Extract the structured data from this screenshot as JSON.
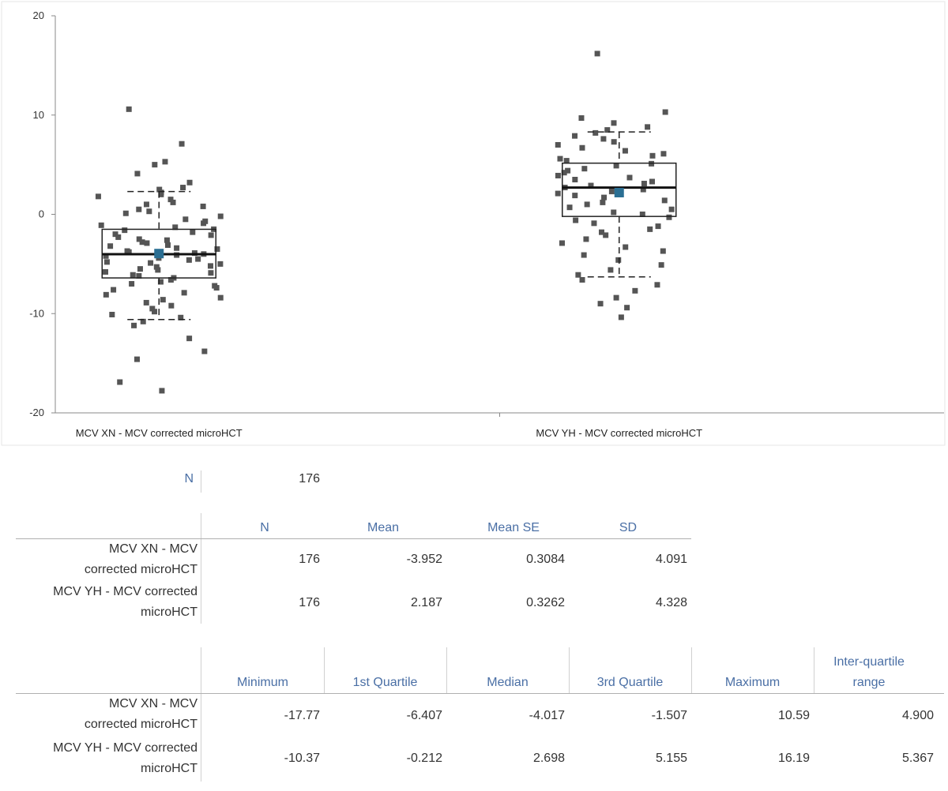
{
  "chart_data": {
    "type": "box-scatter",
    "ylim": [
      -20,
      20
    ],
    "yticks": [
      -20,
      -10,
      0,
      10,
      20
    ],
    "categories": [
      "MCV XN - MCV corrected microHCT",
      "MCV YH - MCV corrected microHCT"
    ],
    "series": [
      {
        "name": "MCV XN - MCV corrected microHCT",
        "box": {
          "min": -17.77,
          "q1": -6.407,
          "median": -4.017,
          "q3": -1.507,
          "max": 10.59,
          "mean": -3.952,
          "whisker_low": -10.6,
          "whisker_high": 2.3
        },
        "points": [
          10.59,
          7.1,
          5.3,
          5.0,
          4.1,
          3.2,
          2.7,
          2.5,
          2.2,
          2.0,
          1.8,
          1.5,
          1.2,
          1.0,
          0.8,
          0.5,
          0.3,
          0.1,
          -0.2,
          -0.5,
          -0.7,
          -0.9,
          -1.1,
          -1.3,
          -1.5,
          -1.6,
          -1.8,
          -2.0,
          -2.1,
          -2.3,
          -2.5,
          -2.6,
          -2.8,
          -2.9,
          -3.1,
          -3.2,
          -3.4,
          -3.5,
          -3.7,
          -3.8,
          -3.9,
          -4.0,
          -4.1,
          -4.2,
          -4.4,
          -4.5,
          -4.6,
          -4.8,
          -4.9,
          -5.0,
          -5.2,
          -5.3,
          -5.5,
          -5.6,
          -5.8,
          -5.9,
          -6.1,
          -6.2,
          -6.4,
          -6.6,
          -6.8,
          -7.0,
          -7.2,
          -7.4,
          -7.6,
          -7.9,
          -8.1,
          -8.4,
          -8.6,
          -8.9,
          -9.2,
          -9.5,
          -9.8,
          -10.1,
          -10.4,
          -10.8,
          -11.2,
          -12.5,
          -13.8,
          -14.6,
          -16.9,
          -17.77
        ]
      },
      {
        "name": "MCV YH - MCV corrected microHCT",
        "box": {
          "min": -10.37,
          "q1": -0.212,
          "median": 2.698,
          "q3": 5.155,
          "max": 16.19,
          "mean": 2.187,
          "whisker_low": -6.3,
          "whisker_high": 8.3
        },
        "points": [
          16.19,
          10.3,
          9.7,
          9.2,
          8.8,
          8.5,
          8.2,
          7.9,
          7.6,
          7.3,
          7.0,
          6.7,
          6.4,
          6.1,
          5.9,
          5.6,
          5.4,
          5.1,
          4.9,
          4.6,
          4.4,
          4.2,
          3.9,
          3.7,
          3.5,
          3.3,
          3.1,
          2.9,
          2.7,
          2.5,
          2.3,
          2.1,
          1.9,
          1.7,
          1.4,
          1.2,
          1.0,
          0.7,
          0.5,
          0.2,
          0.0,
          -0.3,
          -0.6,
          -0.9,
          -1.2,
          -1.5,
          -1.8,
          -2.1,
          -2.5,
          -2.9,
          -3.3,
          -3.7,
          -4.1,
          -4.6,
          -5.1,
          -5.6,
          -6.1,
          -6.6,
          -7.1,
          -7.7,
          -8.4,
          -9.0,
          -9.4,
          -10.37
        ]
      }
    ]
  },
  "summary": {
    "n_label": "N",
    "n_value": "176"
  },
  "table1": {
    "headers": [
      "N",
      "Mean",
      "Mean SE",
      "SD"
    ],
    "rows": [
      {
        "label1": "MCV XN - MCV",
        "label2": "corrected microHCT",
        "values": [
          "176",
          "-3.952",
          "0.3084",
          "4.091"
        ]
      },
      {
        "label1": "MCV YH - MCV corrected",
        "label2": "microHCT",
        "values": [
          "176",
          "2.187",
          "0.3262",
          "4.328"
        ]
      }
    ]
  },
  "table2": {
    "headers": [
      "Minimum",
      "1st Quartile",
      "Median",
      "3rd Quartile",
      "Maximum",
      "Inter-quartile range"
    ],
    "rows": [
      {
        "label1": "MCV XN - MCV",
        "label2": "corrected microHCT",
        "values": [
          "-17.77",
          "-6.407",
          "-4.017",
          "-1.507",
          "10.59",
          "4.900"
        ]
      },
      {
        "label1": "MCV YH - MCV corrected",
        "label2": "microHCT",
        "values": [
          "-10.37",
          "-0.212",
          "2.698",
          "5.155",
          "16.19",
          "5.367"
        ]
      }
    ]
  }
}
